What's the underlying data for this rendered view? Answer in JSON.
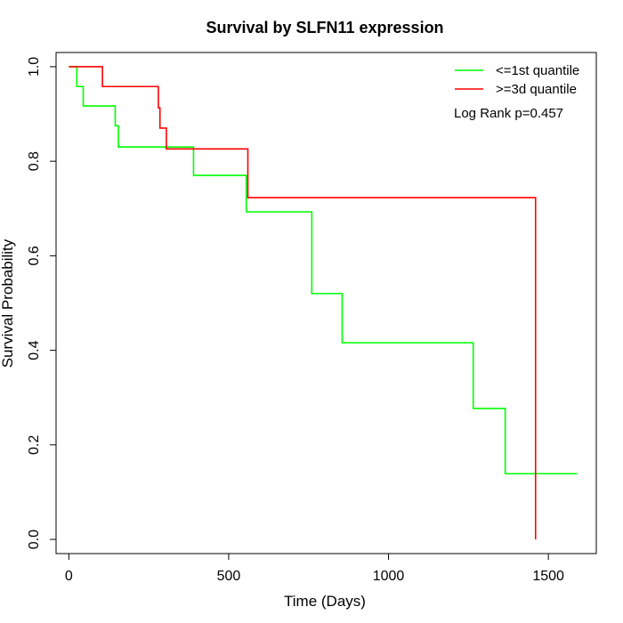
{
  "chart_data": {
    "type": "line",
    "title": "Survival by SLFN11 expression",
    "xlabel": "Time (Days)",
    "ylabel": "Survival Probability",
    "xlim": [
      -40,
      1650
    ],
    "ylim": [
      -0.03,
      1.03
    ],
    "xticks": [
      0,
      500,
      1000,
      1500
    ],
    "yticks": [
      0.0,
      0.2,
      0.4,
      0.6,
      0.8,
      1.0
    ],
    "xtick_labels": [
      "0",
      "500",
      "1000",
      "1500"
    ],
    "ytick_labels": [
      "0.0",
      "0.2",
      "0.4",
      "0.6",
      "0.8",
      "1.0"
    ],
    "grid": false,
    "legend_position": "top-right",
    "annotation": "Log Rank p=0.457",
    "series": [
      {
        "name": "<=1st quantile",
        "color": "#00ff00",
        "step_x": [
          0,
          25,
          45,
          145,
          155,
          390,
          555,
          760,
          855,
          1265,
          1365,
          1590
        ],
        "step_y": [
          1.0,
          0.958,
          0.917,
          0.875,
          0.83,
          0.77,
          0.693,
          0.52,
          0.416,
          0.277,
          0.139,
          0.139
        ]
      },
      {
        "name": ">=3d quantile",
        "color": "#ff0000",
        "step_x": [
          0,
          105,
          280,
          285,
          305,
          555,
          560,
          1455,
          1460
        ],
        "step_y": [
          1.0,
          0.958,
          0.913,
          0.87,
          0.826,
          0.826,
          0.723,
          0.723,
          0.0
        ]
      }
    ]
  }
}
